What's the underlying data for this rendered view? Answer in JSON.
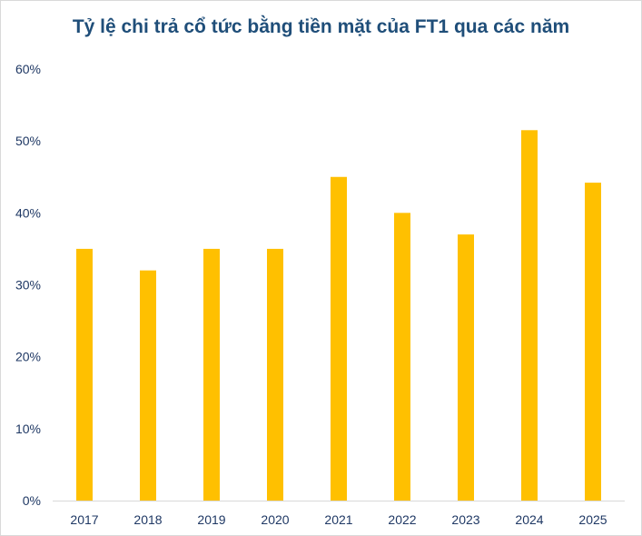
{
  "chart_data": {
    "type": "bar",
    "title": "Tỷ lệ chi trả cổ tức bằng tiền mặt của FT1 qua các năm",
    "xlabel": "",
    "ylabel": "",
    "categories": [
      "2017",
      "2018",
      "2019",
      "2020",
      "2021",
      "2022",
      "2023",
      "2024",
      "2025"
    ],
    "values": [
      35,
      32,
      35,
      35,
      45,
      40,
      37,
      51.5,
      44.2
    ],
    "ylim": [
      0,
      60
    ],
    "ytick_labels": [
      "0%",
      "10%",
      "20%",
      "30%",
      "40%",
      "50%",
      "60%"
    ],
    "ytick_values": [
      0,
      10,
      20,
      30,
      40,
      50,
      60
    ],
    "grid": false,
    "legend": "none",
    "colors": {
      "bar": "#ffc000",
      "title": "#1f4e79",
      "tick": "#1f3864",
      "axis": "#d9d9d9"
    }
  }
}
